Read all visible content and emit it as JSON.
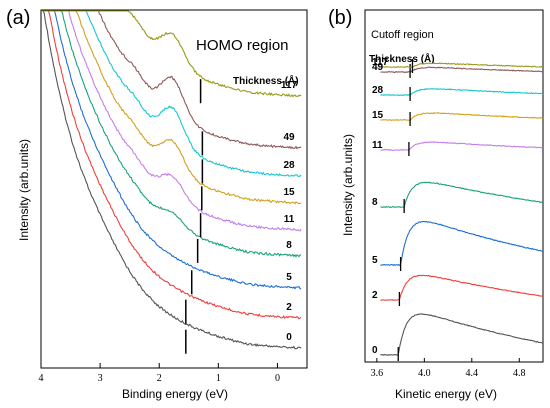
{
  "chart_data": [
    {
      "panel": "(a)",
      "type": "line",
      "title": "HOMO region",
      "xlabel": "Binding energy (eV)",
      "ylabel": "Intensity (arb.units)",
      "xlim": [
        4,
        -0.5
      ],
      "x_reversed": true,
      "xticks": [
        "4",
        "3",
        "2",
        "1",
        "0"
      ],
      "legend_title": "Thickness  (Å)",
      "series": [
        {
          "name": "0",
          "color": "#555555",
          "offset": 0,
          "peak": 0,
          "marker_x": 1.55
        },
        {
          "name": "2",
          "color": "#f0403c",
          "offset": 30,
          "peak": 0,
          "marker_x": 1.55
        },
        {
          "name": "5",
          "color": "#1f6fd0",
          "offset": 60,
          "peak": 0,
          "marker_x": 1.45
        },
        {
          "name": "8",
          "color": "#1aa37a",
          "offset": 92,
          "peak": 12,
          "marker_x": 1.35
        },
        {
          "name": "11",
          "color": "#c37fe8",
          "offset": 118,
          "peak": 22,
          "marker_x": 1.3
        },
        {
          "name": "15",
          "color": "#d4a01e",
          "offset": 145,
          "peak": 30,
          "marker_x": 1.28
        },
        {
          "name": "28",
          "color": "#18c7d2",
          "offset": 172,
          "peak": 36,
          "marker_x": 1.27
        },
        {
          "name": "49",
          "color": "#8d5a5a",
          "offset": 200,
          "peak": 38,
          "marker_x": 1.27
        },
        {
          "name": "117",
          "color": "#9a9a1a",
          "offset": 252,
          "peak": 30,
          "marker_x": 1.3
        }
      ]
    },
    {
      "panel": "(b)",
      "type": "line",
      "title": "Cutoff region",
      "xlabel": "Kinetic energy (eV)",
      "ylabel": "Intensity (arb.units)",
      "xlim": [
        3.5,
        5.0
      ],
      "xticks": [
        "3.6",
        "4.0",
        "4.4",
        "4.8"
      ],
      "legend_title": "Thickness (Å)",
      "series": [
        {
          "name": "0",
          "color": "#555555",
          "cutoff": 3.78
        },
        {
          "name": "2",
          "color": "#f0403c",
          "cutoff": 3.79
        },
        {
          "name": "5",
          "color": "#1f6fd0",
          "cutoff": 3.8
        },
        {
          "name": "8",
          "color": "#1aa37a",
          "cutoff": 3.83
        },
        {
          "name": "11",
          "color": "#c37fe8",
          "cutoff": 3.87
        },
        {
          "name": "15",
          "color": "#d4a01e",
          "cutoff": 3.88
        },
        {
          "name": "28",
          "color": "#18c7d2",
          "cutoff": 3.88
        },
        {
          "name": "49",
          "color": "#8d5a5a",
          "cutoff": 3.88
        },
        {
          "name": "117",
          "color": "#9a9a1a",
          "cutoff": 3.9
        }
      ]
    }
  ]
}
